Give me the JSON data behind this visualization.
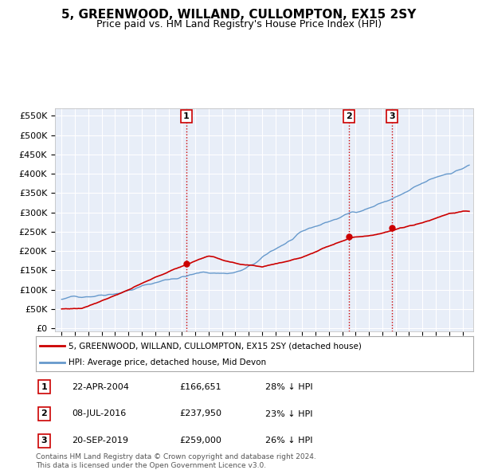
{
  "title": "5, GREENWOOD, WILLAND, CULLOMPTON, EX15 2SY",
  "subtitle": "Price paid vs. HM Land Registry's House Price Index (HPI)",
  "yticks": [
    0,
    50000,
    100000,
    150000,
    200000,
    250000,
    300000,
    350000,
    400000,
    450000,
    500000,
    550000
  ],
  "ytick_labels": [
    "£0",
    "£50K",
    "£100K",
    "£150K",
    "£200K",
    "£250K",
    "£300K",
    "£350K",
    "£400K",
    "£450K",
    "£500K",
    "£550K"
  ],
  "year_start": 1995,
  "year_end": 2025,
  "sale_dates_num": [
    2004.31,
    2016.52,
    2019.72
  ],
  "sale_prices": [
    166651,
    237950,
    259000
  ],
  "sale_labels": [
    "1",
    "2",
    "3"
  ],
  "vline_color": "#cc0000",
  "sale_marker_color": "#cc0000",
  "hpi_line_color": "#6699cc",
  "sale_line_color": "#cc0000",
  "legend_sale_label": "5, GREENWOOD, WILLAND, CULLOMPTON, EX15 2SY (detached house)",
  "legend_hpi_label": "HPI: Average price, detached house, Mid Devon",
  "table_rows": [
    [
      "1",
      "22-APR-2004",
      "£166,651",
      "28% ↓ HPI"
    ],
    [
      "2",
      "08-JUL-2016",
      "£237,950",
      "23% ↓ HPI"
    ],
    [
      "3",
      "20-SEP-2019",
      "£259,000",
      "26% ↓ HPI"
    ]
  ],
  "footer": "Contains HM Land Registry data © Crown copyright and database right 2024.\nThis data is licensed under the Open Government Licence v3.0.",
  "background_color": "#ffffff",
  "plot_background": "#e8eef8"
}
